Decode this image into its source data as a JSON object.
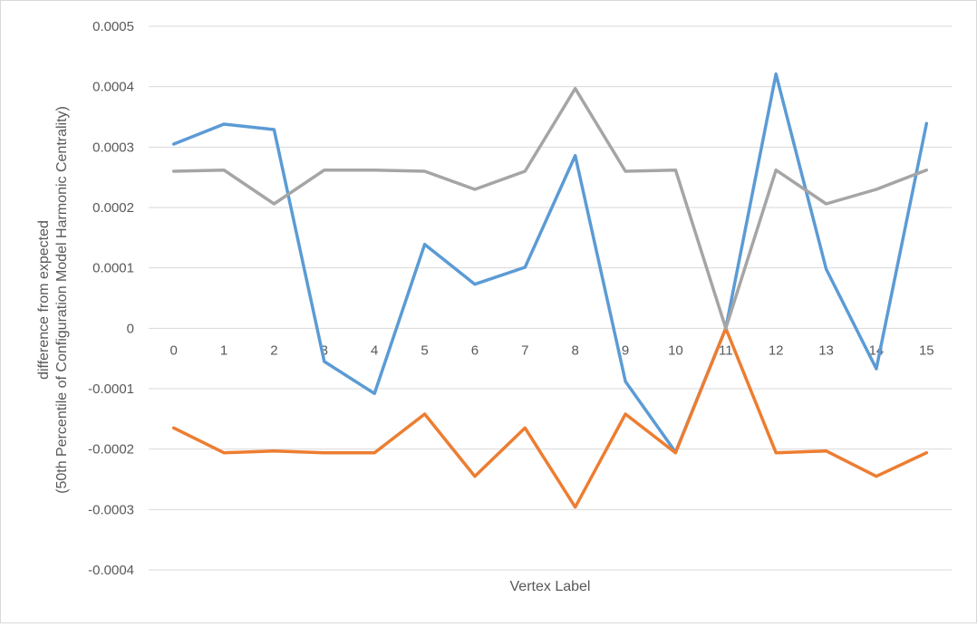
{
  "chart_data": {
    "type": "line",
    "title": "",
    "xlabel": "Vertex Label",
    "ylabel_lines": [
      "difference from expected",
      "(50th Percentile of Configuration Model Harmonic Centrality)"
    ],
    "categories": [
      "0",
      "1",
      "2",
      "3",
      "4",
      "5",
      "6",
      "7",
      "8",
      "9",
      "10",
      "11",
      "12",
      "13",
      "14",
      "15"
    ],
    "ylim": [
      -0.0004,
      0.0005
    ],
    "yticks": [
      0.0005,
      0.0004,
      0.0003,
      0.0002,
      0.0001,
      0,
      -0.0001,
      -0.0002,
      -0.0003,
      -0.0004
    ],
    "ytick_labels": [
      "0.0005",
      "0.0004",
      "0.0003",
      "0.0002",
      "0.0001",
      "0",
      "-0.0001",
      "-0.0002",
      "-0.0003",
      "-0.0004"
    ],
    "grid": true,
    "legend": "none",
    "series": [
      {
        "color": "#5b9bd5",
        "values": [
          0.000305,
          0.000338,
          0.000329,
          -5.5e-05,
          -0.000108,
          0.000139,
          7.3e-05,
          0.000101,
          0.000286,
          -8.8e-05,
          -0.000205,
          0.0,
          0.000421,
          9.8e-05,
          -6.7e-05,
          0.000339
        ]
      },
      {
        "color": "#ed7d31",
        "values": [
          -0.000165,
          -0.000206,
          -0.000203,
          -0.000206,
          -0.000206,
          -0.000142,
          -0.000245,
          -0.000165,
          -0.000296,
          -0.000142,
          -0.000206,
          0.0,
          -0.000206,
          -0.000203,
          -0.000245,
          -0.000206
        ]
      },
      {
        "color": "#a5a5a5",
        "values": [
          0.00026,
          0.000262,
          0.000206,
          0.000262,
          0.000262,
          0.00026,
          0.00023,
          0.00026,
          0.000397,
          0.00026,
          0.000262,
          0.0,
          0.000262,
          0.000206,
          0.00023,
          0.000262
        ]
      }
    ]
  }
}
